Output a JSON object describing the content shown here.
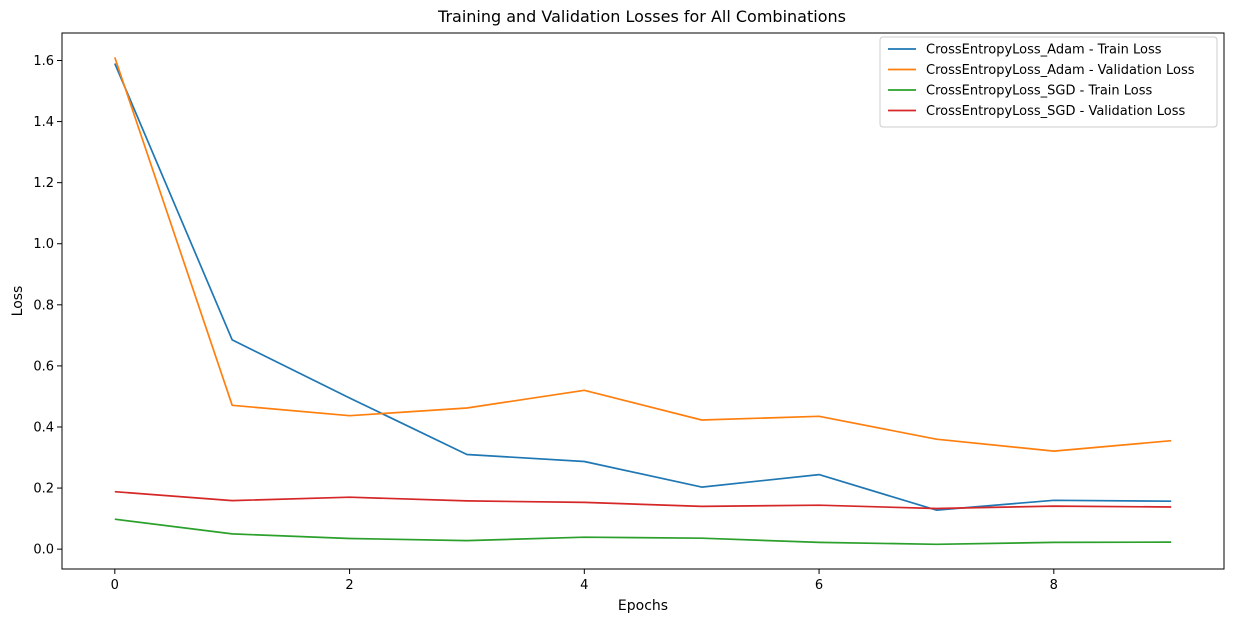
{
  "chart_data": {
    "type": "line",
    "title": "Training and Validation Losses for All Combinations",
    "xlabel": "Epochs",
    "ylabel": "Loss",
    "xlim": [
      -0.45,
      9.45
    ],
    "ylim": [
      -0.065,
      1.69
    ],
    "x_ticks": [
      0,
      2,
      4,
      6,
      8
    ],
    "x_tick_labels": [
      "0",
      "2",
      "4",
      "6",
      "8"
    ],
    "y_ticks": [
      0.0,
      0.2,
      0.4,
      0.6,
      0.8,
      1.0,
      1.2,
      1.4,
      1.6
    ],
    "y_tick_labels": [
      "0.0",
      "0.2",
      "0.4",
      "0.6",
      "0.8",
      "1.0",
      "1.2",
      "1.4",
      "1.6"
    ],
    "grid": false,
    "legend_position": "top-right",
    "x": [
      0,
      1,
      2,
      3,
      4,
      5,
      6,
      7,
      8,
      9
    ],
    "series": [
      {
        "name": "CrossEntropyLoss_Adam - Train Loss",
        "color": "#1f77b4",
        "values": [
          1.59,
          0.685,
          0.495,
          0.31,
          0.287,
          0.203,
          0.244,
          0.128,
          0.16,
          0.157
        ]
      },
      {
        "name": "CrossEntropyLoss_Adam - Validation Loss",
        "color": "#ff7f0e",
        "values": [
          1.61,
          0.471,
          0.437,
          0.462,
          0.52,
          0.423,
          0.435,
          0.36,
          0.321,
          0.355
        ]
      },
      {
        "name": "CrossEntropyLoss_SGD - Train Loss",
        "color": "#2ca02c",
        "values": [
          0.098,
          0.05,
          0.035,
          0.028,
          0.039,
          0.036,
          0.022,
          0.016,
          0.022,
          0.023
        ]
      },
      {
        "name": "CrossEntropyLoss_SGD - Validation Loss",
        "color": "#d62728",
        "values": [
          0.188,
          0.159,
          0.17,
          0.158,
          0.153,
          0.14,
          0.144,
          0.133,
          0.141,
          0.138
        ]
      }
    ]
  }
}
